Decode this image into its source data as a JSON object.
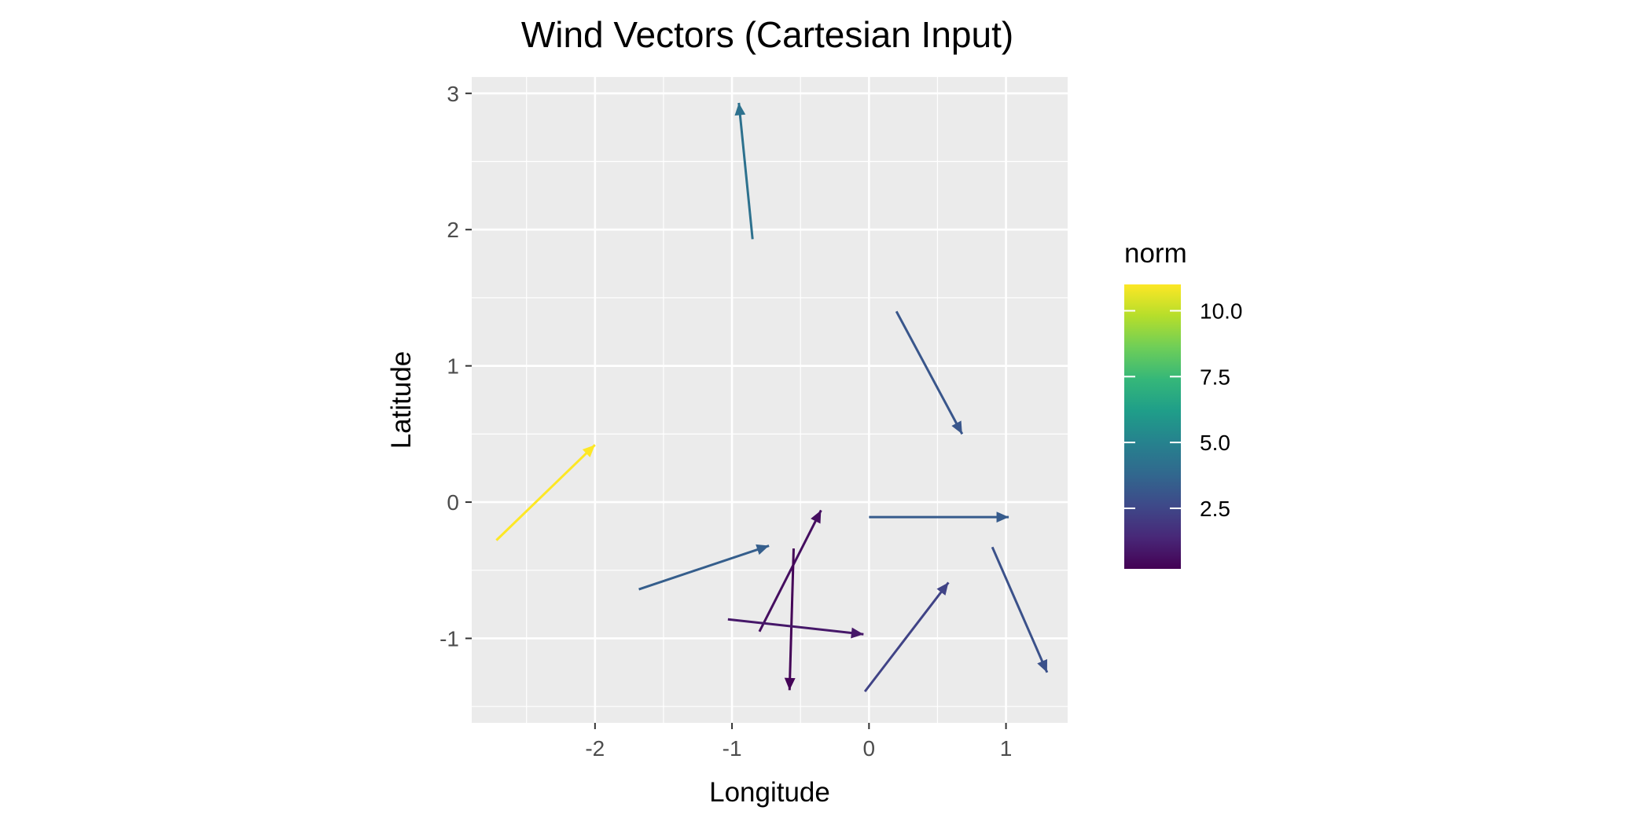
{
  "chart_data": {
    "type": "quiver",
    "title": "Wind Vectors (Cartesian Input)",
    "xlabel": "Longitude",
    "ylabel": "Latitude",
    "xlim": [
      -2.9,
      1.45
    ],
    "ylim": [
      -1.62,
      3.12
    ],
    "x_ticks": [
      -2,
      -1,
      0,
      1
    ],
    "y_ticks": [
      -1,
      0,
      1,
      2,
      3
    ],
    "grid": true,
    "legend": {
      "title": "norm",
      "placement": "right",
      "range": [
        0.2,
        11.0
      ],
      "ticks": [
        2.5,
        5.0,
        7.5,
        10.0
      ],
      "tick_labels": [
        "2.5",
        "5.0",
        "7.5",
        "10.0"
      ],
      "colors": [
        "#440154",
        "#482878",
        "#3e4989",
        "#31688e",
        "#26828e",
        "#1f9e89",
        "#35b779",
        "#6ece58",
        "#b5de2b",
        "#fde725"
      ]
    },
    "vectors": [
      {
        "x": -0.85,
        "y": 1.93,
        "xend": -0.95,
        "yend": 2.93,
        "norm": 4.2
      },
      {
        "x": 0.2,
        "y": 1.4,
        "xend": 0.68,
        "yend": 0.5,
        "norm": 3.1
      },
      {
        "x": -2.72,
        "y": -0.28,
        "xend": -2.0,
        "yend": 0.42,
        "norm": 11.0
      },
      {
        "x": 0.0,
        "y": -0.11,
        "xend": 1.02,
        "yend": -0.11,
        "norm": 3.3
      },
      {
        "x": -1.68,
        "y": -0.64,
        "xend": -0.73,
        "yend": -0.32,
        "norm": 3.4
      },
      {
        "x": -0.8,
        "y": -0.95,
        "xend": -0.35,
        "yend": -0.06,
        "norm": 0.6
      },
      {
        "x": -0.55,
        "y": -0.34,
        "xend": -0.58,
        "yend": -1.38,
        "norm": 0.3
      },
      {
        "x": -1.03,
        "y": -0.86,
        "xend": -0.04,
        "yend": -0.97,
        "norm": 0.9
      },
      {
        "x": -0.03,
        "y": -1.39,
        "xend": 0.58,
        "yend": -0.59,
        "norm": 2.4
      },
      {
        "x": 0.9,
        "y": -0.33,
        "xend": 1.3,
        "yend": -1.25,
        "norm": 2.9
      }
    ]
  }
}
